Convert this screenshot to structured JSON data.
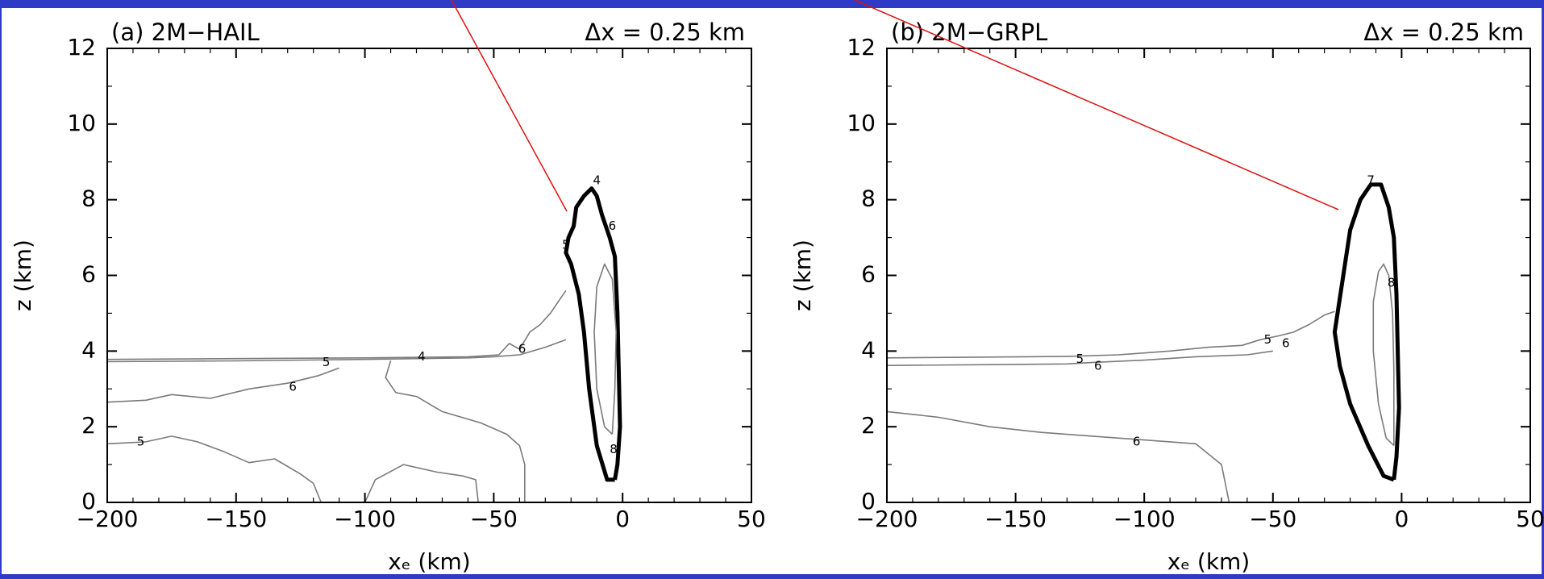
{
  "colors": {
    "slide_background": "#2e3bc6",
    "panel_background": "#ffffff",
    "contour_gray": "#7a7a7a",
    "contour_bold": "#000000",
    "pointer_line": "#e01010"
  },
  "chart_data": [
    {
      "type": "contour",
      "panel_label": "(a) 2M−HAIL",
      "resolution_label": "Δx  =  0.25  km",
      "xlabel": "xₑ  (km)",
      "ylabel": "z  (km)",
      "xlim": [
        -200,
        50
      ],
      "ylim": [
        0,
        12
      ],
      "xticks": [
        -200,
        -150,
        -100,
        -50,
        0,
        50
      ],
      "yticks": [
        0,
        2,
        4,
        6,
        8,
        10,
        12
      ],
      "xtick_labels": [
        "−200",
        "−150",
        "−100",
        "−50",
        "0",
        "50"
      ],
      "ytick_labels": [
        "0",
        "2",
        "4",
        "6",
        "8",
        "10",
        "12"
      ],
      "contours": [
        {
          "level": "bold",
          "bold": true,
          "points": [
            [
              -3,
              0.6
            ],
            [
              -6,
              0.6
            ],
            [
              -10,
              1.5
            ],
            [
              -13,
              3
            ],
            [
              -15,
              4.5
            ],
            [
              -17,
              5.5
            ],
            [
              -20,
              6.3
            ],
            [
              -22,
              6.6
            ],
            [
              -21,
              7.0
            ],
            [
              -19,
              7.3
            ],
            [
              -18,
              7.8
            ],
            [
              -15,
              8.1
            ],
            [
              -12,
              8.3
            ],
            [
              -10,
              8.1
            ],
            [
              -8,
              7.6
            ],
            [
              -5,
              7.0
            ],
            [
              -3,
              6.5
            ],
            [
              -2,
              5
            ],
            [
              -1.5,
              3.5
            ],
            [
              -1,
              2
            ],
            [
              -2,
              1
            ],
            [
              -3,
              0.6
            ]
          ]
        },
        {
          "level": "8",
          "bold": false,
          "points": [
            [
              -4,
              1.8
            ],
            [
              -7,
              2
            ],
            [
              -10,
              3
            ],
            [
              -11,
              4.5
            ],
            [
              -10,
              5.7
            ],
            [
              -7,
              6.3
            ],
            [
              -4,
              5.9
            ],
            [
              -2.5,
              4.5
            ],
            [
              -3,
              3
            ],
            [
              -4,
              1.8
            ]
          ]
        },
        {
          "level": "5",
          "bold": false,
          "points": [
            [
              -200,
              3.78
            ],
            [
              -150,
              3.8
            ],
            [
              -100,
              3.82
            ],
            [
              -60,
              3.85
            ],
            [
              -48,
              3.9
            ],
            [
              -44,
              4.2
            ],
            [
              -40,
              4.05
            ],
            [
              -36,
              4.5
            ],
            [
              -32,
              4.7
            ],
            [
              -28,
              5.0
            ],
            [
              -24,
              5.4
            ],
            [
              -22,
              5.6
            ]
          ]
        },
        {
          "level": "4",
          "bold": false,
          "points": [
            [
              -200,
              3.72
            ],
            [
              -150,
              3.74
            ],
            [
              -100,
              3.78
            ],
            [
              -60,
              3.82
            ],
            [
              -50,
              3.85
            ],
            [
              -40,
              3.9
            ],
            [
              -30,
              4.1
            ],
            [
              -22,
              4.3
            ]
          ]
        },
        {
          "level": "6",
          "bold": false,
          "points": [
            [
              -200,
              2.65
            ],
            [
              -185,
              2.7
            ],
            [
              -175,
              2.85
            ],
            [
              -160,
              2.75
            ],
            [
              -145,
              3.0
            ],
            [
              -130,
              3.15
            ],
            [
              -118,
              3.35
            ],
            [
              -110,
              3.55
            ]
          ]
        },
        {
          "level": "5",
          "bold": false,
          "points": [
            [
              -200,
              1.55
            ],
            [
              -185,
              1.6
            ],
            [
              -175,
              1.75
            ],
            [
              -165,
              1.6
            ],
            [
              -155,
              1.35
            ],
            [
              -145,
              1.05
            ],
            [
              -135,
              1.15
            ],
            [
              -125,
              0.75
            ],
            [
              -120,
              0.5
            ],
            [
              -117,
              0
            ]
          ]
        },
        {
          "level": "5",
          "bold": false,
          "points": [
            [
              -100,
              0
            ],
            [
              -96,
              0.6
            ],
            [
              -85,
              1.0
            ],
            [
              -72,
              0.8
            ],
            [
              -62,
              0.7
            ],
            [
              -57,
              0.6
            ],
            [
              -56,
              0
            ]
          ]
        },
        {
          "level": "",
          "bold": false,
          "points": [
            [
              -90,
              3.75
            ],
            [
              -92,
              3.3
            ],
            [
              -88,
              2.9
            ],
            [
              -80,
              2.8
            ],
            [
              -70,
              2.4
            ],
            [
              -55,
              2.1
            ],
            [
              -45,
              1.8
            ],
            [
              -40,
              1.5
            ],
            [
              -38,
              1.0
            ],
            [
              -38,
              0
            ]
          ]
        }
      ],
      "contour_labels": [
        {
          "text": "4",
          "x": -10,
          "y": 8.5
        },
        {
          "text": "6",
          "x": -4,
          "y": 7.3
        },
        {
          "text": "5",
          "x": -22,
          "y": 6.8
        },
        {
          "text": "6",
          "x": -39,
          "y": 4.05
        },
        {
          "text": "5",
          "x": -115,
          "y": 3.7
        },
        {
          "text": "4",
          "x": -78,
          "y": 3.85
        },
        {
          "text": "6",
          "x": -128,
          "y": 3.05
        },
        {
          "text": "5",
          "x": -187,
          "y": 1.6
        },
        {
          "text": "8",
          "x": -3.5,
          "y": 1.4
        }
      ]
    },
    {
      "type": "contour",
      "panel_label": "(b) 2M−GRPL",
      "resolution_label": "Δx  =  0.25  km",
      "xlabel": "xₑ  (km)",
      "ylabel": "z  (km)",
      "xlim": [
        -200,
        50
      ],
      "ylim": [
        0,
        12
      ],
      "xticks": [
        -200,
        -150,
        -100,
        -50,
        0,
        50
      ],
      "yticks": [
        0,
        2,
        4,
        6,
        8,
        10,
        12
      ],
      "xtick_labels": [
        "−200",
        "−150",
        "−100",
        "−50",
        "0",
        "50"
      ],
      "ytick_labels": [
        "0",
        "2",
        "4",
        "6",
        "8",
        "10",
        "12"
      ],
      "contours": [
        {
          "level": "bold",
          "bold": true,
          "points": [
            [
              -3,
              0.6
            ],
            [
              -7,
              0.7
            ],
            [
              -13,
              1.5
            ],
            [
              -20,
              2.6
            ],
            [
              -24,
              3.6
            ],
            [
              -26,
              4.5
            ],
            [
              -24,
              5.4
            ],
            [
              -22,
              6.3
            ],
            [
              -20,
              7.2
            ],
            [
              -16,
              8.0
            ],
            [
              -12,
              8.4
            ],
            [
              -8,
              8.4
            ],
            [
              -5,
              7.8
            ],
            [
              -3,
              7.0
            ],
            [
              -2,
              5.5
            ],
            [
              -1.5,
              4
            ],
            [
              -1,
              2.5
            ],
            [
              -2,
              1.2
            ],
            [
              -3,
              0.6
            ]
          ]
        },
        {
          "level": "8",
          "bold": false,
          "points": [
            [
              -3,
              1.5
            ],
            [
              -6,
              1.7
            ],
            [
              -9,
              2.6
            ],
            [
              -11,
              4
            ],
            [
              -11,
              5.3
            ],
            [
              -9,
              6.1
            ],
            [
              -7,
              6.3
            ],
            [
              -5,
              6.0
            ],
            [
              -3.5,
              5
            ],
            [
              -3,
              3.5
            ],
            [
              -3,
              1.5
            ]
          ]
        },
        {
          "level": "5",
          "bold": false,
          "points": [
            [
              -200,
              3.82
            ],
            [
              -160,
              3.84
            ],
            [
              -130,
              3.86
            ],
            [
              -110,
              3.9
            ],
            [
              -90,
              4.0
            ],
            [
              -75,
              4.1
            ],
            [
              -62,
              4.15
            ],
            [
              -55,
              4.3
            ],
            [
              -48,
              4.4
            ],
            [
              -42,
              4.5
            ],
            [
              -36,
              4.7
            ],
            [
              -30,
              4.95
            ],
            [
              -26,
              5.05
            ]
          ]
        },
        {
          "level": "6",
          "bold": false,
          "points": [
            [
              -200,
              3.62
            ],
            [
              -160,
              3.64
            ],
            [
              -130,
              3.66
            ],
            [
              -120,
              3.7
            ],
            [
              -100,
              3.76
            ],
            [
              -80,
              3.85
            ],
            [
              -60,
              3.9
            ],
            [
              -50,
              4.0
            ]
          ]
        },
        {
          "level": "6",
          "bold": false,
          "points": [
            [
              -200,
              2.4
            ],
            [
              -180,
              2.25
            ],
            [
              -160,
              2.0
            ],
            [
              -140,
              1.85
            ],
            [
              -120,
              1.75
            ],
            [
              -100,
              1.65
            ],
            [
              -80,
              1.55
            ],
            [
              -70,
              1.0
            ],
            [
              -67,
              0
            ]
          ]
        }
      ],
      "contour_labels": [
        {
          "text": "7",
          "x": -12,
          "y": 8.5
        },
        {
          "text": "8",
          "x": -4,
          "y": 5.8
        },
        {
          "text": "5",
          "x": -52,
          "y": 4.3
        },
        {
          "text": "6",
          "x": -45,
          "y": 4.2
        },
        {
          "text": "5",
          "x": -125,
          "y": 3.78
        },
        {
          "text": "6",
          "x": -118,
          "y": 3.6
        },
        {
          "text": "6",
          "x": -103,
          "y": 1.6
        }
      ]
    }
  ]
}
